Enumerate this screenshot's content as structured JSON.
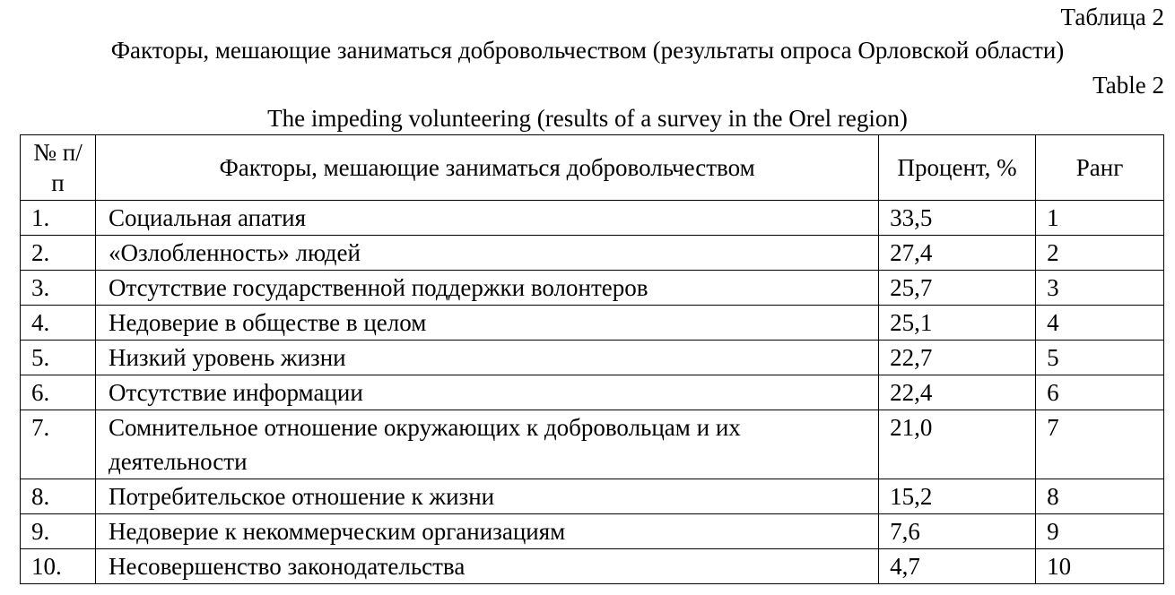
{
  "doc": {
    "label_ru": "Таблица 2",
    "title_ru": "Факторы, мешающие заниматься добровольчеством (результаты опроса Орловской области)",
    "label_en": "Table 2",
    "title_en": "The impeding volunteering (results of a survey in the Orel region)"
  },
  "table": {
    "headers": [
      "№ п/п",
      "Факторы, мешающие заниматься добровольчеством",
      "Процент, %",
      "Ранг"
    ],
    "rows": [
      [
        "1.",
        "Социальная апатия",
        "33,5",
        "1"
      ],
      [
        "2.",
        "«Озлобленность» людей",
        "27,4",
        "2"
      ],
      [
        "3.",
        "Отсутствие государственной поддержки волонтеров",
        "25,7",
        "3"
      ],
      [
        "4.",
        "Недоверие в обществе в целом",
        "25,1",
        "4"
      ],
      [
        "5.",
        "Низкий уровень жизни",
        "22,7",
        "5"
      ],
      [
        "6.",
        "Отсутствие информации",
        "22,4",
        "6"
      ],
      [
        "7.",
        "Сомнительное отношение окружающих к добровольцам и их деятельности",
        "21,0",
        "7"
      ],
      [
        "8.",
        "Потребительское отношение к жизни",
        "15,2",
        "8"
      ],
      [
        "9.",
        "Недоверие к некоммерческим организациям",
        "7,6",
        "9"
      ],
      [
        "10.",
        "Несовершенство законодательства",
        "4,7",
        "10"
      ]
    ]
  }
}
